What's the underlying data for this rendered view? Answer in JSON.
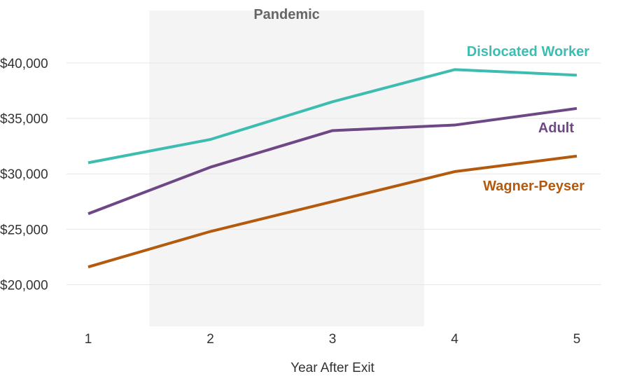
{
  "chart_data": {
    "type": "line",
    "title": "",
    "xlabel": "Year After Exit",
    "ylabel": "",
    "x": [
      1,
      2,
      3,
      4,
      5
    ],
    "x_tick_labels": [
      "1",
      "2",
      "3",
      "4",
      "5"
    ],
    "ylim": [
      16250,
      41750
    ],
    "y_ticks": [
      20000,
      25000,
      30000,
      35000,
      40000
    ],
    "y_tick_labels": [
      "$20,000",
      "$25,000",
      "$30,000",
      "$35,000",
      "$40,000"
    ],
    "grid": true,
    "shaded_region": {
      "label": "Pandemic",
      "x_start": 1.5,
      "x_end": 3.75,
      "color": "#f4f4f4"
    },
    "series": [
      {
        "name": "Dislocated Worker",
        "color": "#3dbdb2",
        "values": [
          31000,
          33100,
          36500,
          39400,
          38900
        ]
      },
      {
        "name": "Adult",
        "color": "#6e4886",
        "values": [
          26400,
          30600,
          33900,
          34400,
          35900
        ]
      },
      {
        "name": "Wagner-Peyser",
        "color": "#b35a0f",
        "values": [
          21600,
          24800,
          27500,
          30200,
          31600
        ]
      }
    ]
  }
}
